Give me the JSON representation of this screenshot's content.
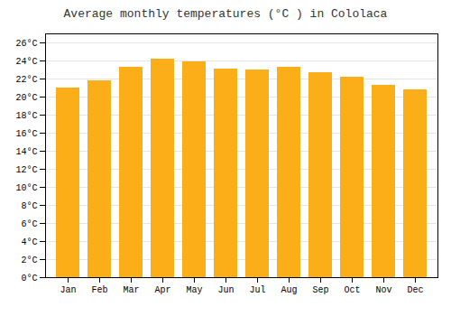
{
  "chart_data": {
    "type": "bar",
    "title": "Average monthly temperatures (°C ) in Cololaca",
    "categories": [
      "Jan",
      "Feb",
      "Mar",
      "Apr",
      "May",
      "Jun",
      "Jul",
      "Aug",
      "Sep",
      "Oct",
      "Nov",
      "Dec"
    ],
    "values": [
      21.0,
      21.8,
      23.3,
      24.2,
      23.9,
      23.1,
      23.0,
      23.3,
      22.7,
      22.2,
      21.3,
      20.8
    ],
    "color": "#FBAE17",
    "ylim": [
      0,
      27
    ],
    "yticks": [
      {
        "value": 0,
        "label": "0°C"
      },
      {
        "value": 2,
        "label": "2°C"
      },
      {
        "value": 4,
        "label": "4°C"
      },
      {
        "value": 6,
        "label": "6°C"
      },
      {
        "value": 8,
        "label": "8°C"
      },
      {
        "value": 10,
        "label": "10°C"
      },
      {
        "value": 12,
        "label": "12°C"
      },
      {
        "value": 14,
        "label": "14°C"
      },
      {
        "value": 16,
        "label": "16°C"
      },
      {
        "value": 18,
        "label": "18°C"
      },
      {
        "value": 20,
        "label": "20°C"
      },
      {
        "value": 22,
        "label": "22°C"
      },
      {
        "value": 24,
        "label": "24°C"
      },
      {
        "value": 26,
        "label": "26°C"
      }
    ],
    "grid": true
  }
}
